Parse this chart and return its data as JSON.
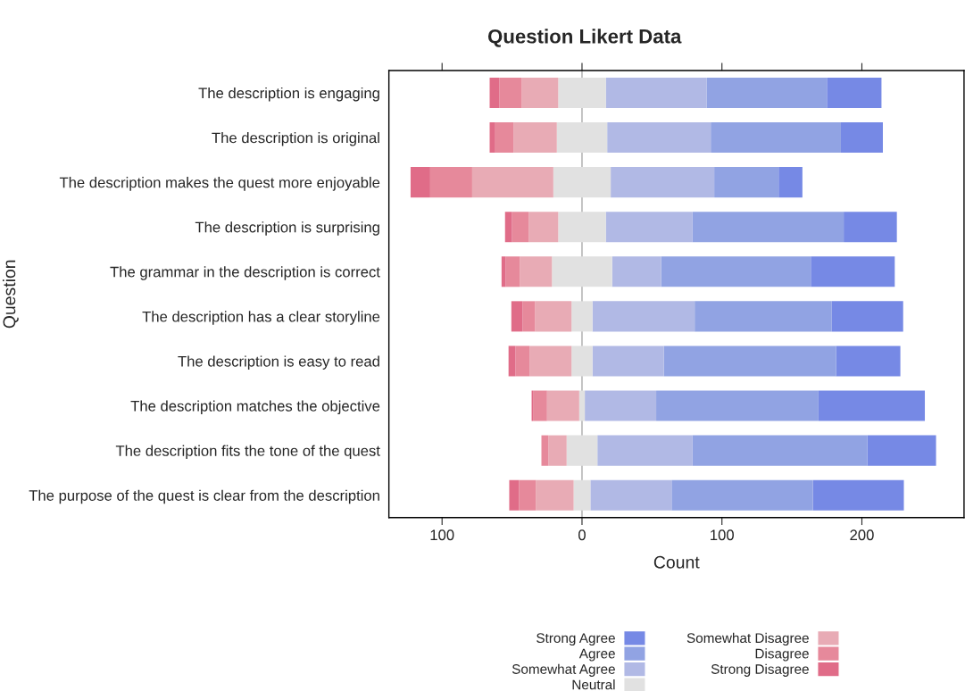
{
  "chart_data": {
    "type": "bar",
    "orientation": "horizontal",
    "title": "Question Likert Data",
    "xlabel": "Count",
    "ylabel": "Question",
    "categories": [
      "The description is engaging",
      "The description is original",
      "The description makes the quest more enjoyable",
      "The description is surprising",
      "The grammar in the description is correct",
      "The description has a clear storyline",
      "The description is easy to read",
      "The description matches the objective",
      "The description fits the tone of the quest",
      "The purpose of the quest is clear from the description"
    ],
    "series": [
      {
        "name": "Strong Agree",
        "color": "#7689e5",
        "base": [
          175,
          185,
          140.5,
          187,
          163.5,
          178.5,
          181.5,
          169,
          204,
          165
        ],
        "values": [
          39,
          30,
          17,
          38,
          60,
          51,
          46,
          76,
          49,
          65
        ]
      },
      {
        "name": "Agree",
        "color": "#91a3e3",
        "base": [
          89,
          92,
          94.5,
          79,
          56.5,
          80.5,
          58.5,
          53,
          79,
          64
        ],
        "values": [
          86,
          93,
          46,
          108,
          107,
          98,
          123,
          116,
          125,
          101
        ]
      },
      {
        "name": "Somewhat Agree",
        "color": "#b1b9e5",
        "base": [
          17,
          18,
          20.5,
          17,
          21.5,
          7.5,
          7.5,
          2,
          11,
          6
        ],
        "values": [
          72,
          74,
          74,
          62,
          35,
          73,
          51,
          51,
          68,
          58
        ]
      },
      {
        "name": "Neutral",
        "color": "#e1e1e1",
        "base": [
          -17,
          -18,
          -20.5,
          -17,
          -21.5,
          -7.5,
          -7.5,
          -2,
          -11,
          -6
        ],
        "values": [
          34,
          36,
          41,
          34,
          43,
          15,
          15,
          4,
          22,
          12
        ]
      },
      {
        "name": "Somewhat Disagree",
        "color": "#e8abb5",
        "base": [
          -43,
          -49,
          -78.5,
          -38,
          -44.5,
          -33.5,
          -37.5,
          -25,
          -24,
          -33
        ],
        "values": [
          26,
          31,
          58,
          21,
          23,
          26,
          30,
          23,
          13,
          27
        ]
      },
      {
        "name": "Disagree",
        "color": "#e6899b",
        "base": [
          -59,
          -62,
          -108.5,
          -50,
          -54.5,
          -42.5,
          -47.5,
          -35,
          -29,
          -45
        ],
        "values": [
          16,
          13,
          30,
          12,
          10,
          9,
          10,
          10,
          5,
          12
        ]
      },
      {
        "name": "Strong Disagree",
        "color": "#e06c88",
        "base": [
          -66,
          -66,
          -122.5,
          -55,
          -57.5,
          -50.5,
          -52.5,
          -36,
          null,
          -52
        ],
        "values": [
          7,
          4,
          14,
          5,
          3,
          8,
          5,
          1,
          null,
          7
        ]
      }
    ],
    "xlim": [
      -138,
      273
    ],
    "xticks": [
      {
        "value": -100,
        "label": "100"
      },
      0,
      100,
      200
    ],
    "ref_lines": [
      {
        "axis": "x",
        "value": 0,
        "color": "#a0a0a0"
      }
    ],
    "grid": false,
    "legend": "bottom"
  }
}
